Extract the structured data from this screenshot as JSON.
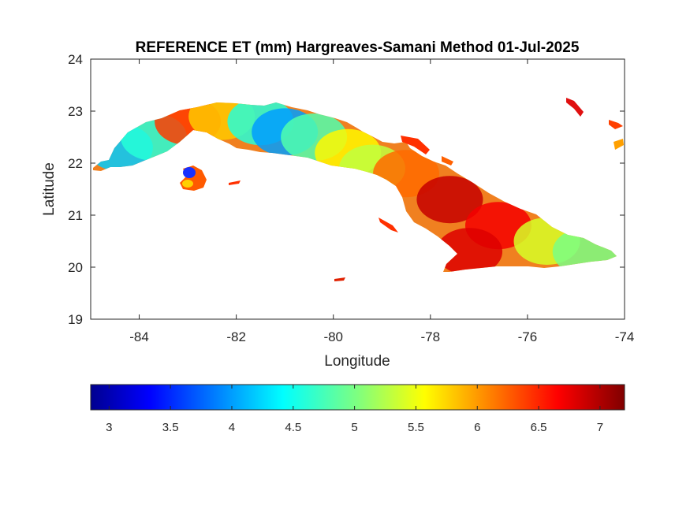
{
  "chart_data": {
    "type": "heatmap",
    "title": "REFERENCE ET (mm) Hargreaves-Samani Method  01-Jul-2025",
    "xlabel": "Longitude",
    "ylabel": "Latitude",
    "xlim": [
      -85,
      -74
    ],
    "ylim": [
      19,
      24
    ],
    "xticks": [
      -84,
      -82,
      -80,
      -78,
      -76,
      -74
    ],
    "yticks": [
      19,
      20,
      21,
      22,
      23,
      24
    ],
    "grid": false,
    "colormap": "jet",
    "colorbar": {
      "location": "bottom",
      "clim": [
        2.85,
        7.2
      ],
      "ticks": [
        3,
        3.5,
        4,
        4.5,
        5,
        5.5,
        6,
        6.5,
        7
      ]
    },
    "regions": [
      {
        "name": "",
        "lon": -84.4,
        "lat": 22.3,
        "value": 4.2
      },
      {
        "name": "",
        "lon": -83.7,
        "lat": 22.5,
        "value": 4.6
      },
      {
        "name": "",
        "lon": -83.0,
        "lat": 22.8,
        "value": 6.4
      },
      {
        "name": "",
        "lon": -82.3,
        "lat": 22.9,
        "value": 5.8
      },
      {
        "name": "",
        "lon": -81.5,
        "lat": 22.8,
        "value": 4.6
      },
      {
        "name": "",
        "lon": -81.0,
        "lat": 22.6,
        "value": 4.0
      },
      {
        "name": "",
        "lon": -80.4,
        "lat": 22.5,
        "value": 4.8
      },
      {
        "name": "",
        "lon": -79.7,
        "lat": 22.2,
        "value": 5.6
      },
      {
        "name": "",
        "lon": -79.2,
        "lat": 21.9,
        "value": 5.3
      },
      {
        "name": "",
        "lon": -78.5,
        "lat": 21.8,
        "value": 6.2
      },
      {
        "name": "",
        "lon": -77.6,
        "lat": 21.3,
        "value": 6.9
      },
      {
        "name": "",
        "lon": -76.6,
        "lat": 20.8,
        "value": 6.7
      },
      {
        "name": "",
        "lon": -77.2,
        "lat": 20.3,
        "value": 6.8
      },
      {
        "name": "",
        "lon": -75.6,
        "lat": 20.5,
        "value": 5.4
      },
      {
        "name": "",
        "lon": -74.8,
        "lat": 20.3,
        "value": 5.0
      },
      {
        "name": "",
        "lon": -82.9,
        "lat": 21.7,
        "value": 3.3
      }
    ]
  }
}
